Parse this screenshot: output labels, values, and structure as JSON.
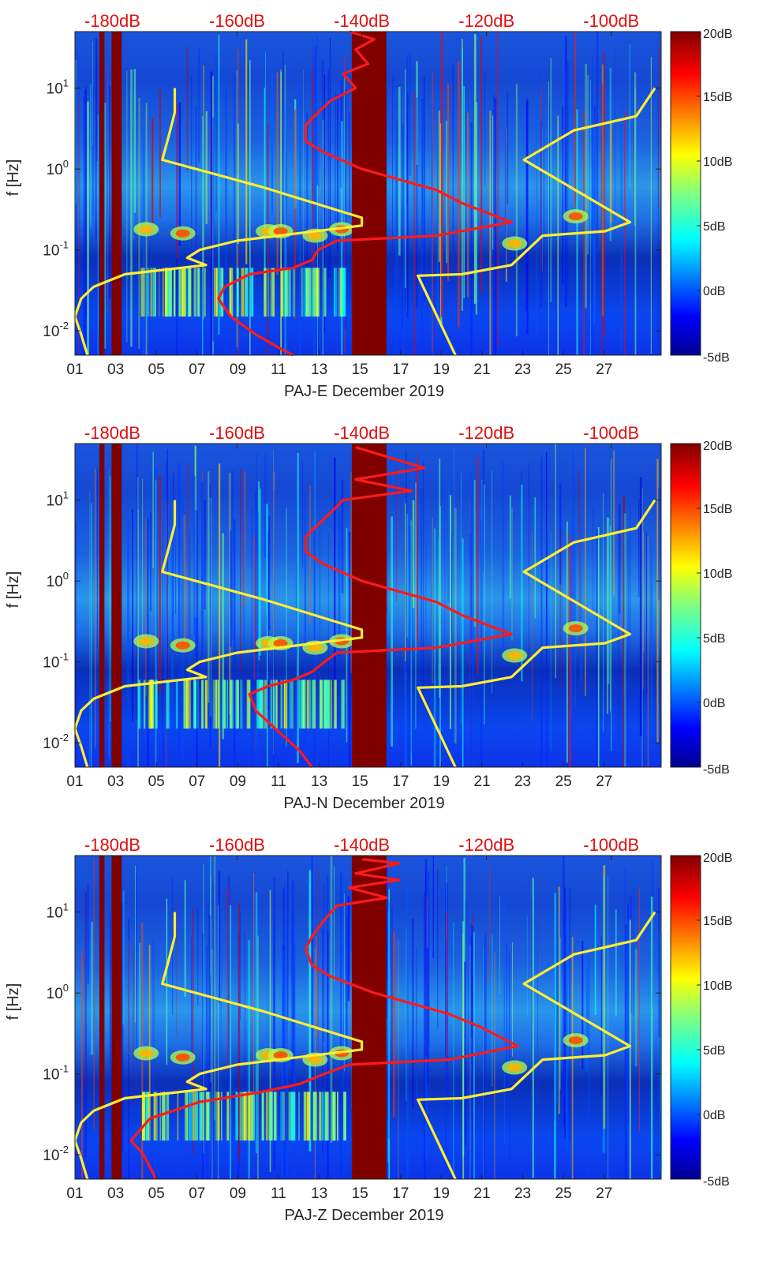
{
  "colors": {
    "noise_model": "#ff1a1a",
    "station_curve": "#ffee33",
    "gap": "#800000",
    "top_label": "#e01010"
  },
  "colorbar": {
    "ticks": [
      "20dB",
      "15dB",
      "10dB",
      "5dB",
      "0dB",
      "-5dB"
    ],
    "range": [
      -5,
      20
    ],
    "colormap": "jet"
  },
  "chart_data": [
    {
      "type": "heatmap",
      "title": "",
      "xlabel": "PAJ-E December 2019",
      "ylabel": "f [Hz]",
      "x_ticks": [
        "01",
        "03",
        "05",
        "07",
        "09",
        "11",
        "13",
        "15",
        "17",
        "19",
        "21",
        "23",
        "25",
        "27"
      ],
      "y_ticks": [
        "10^-2",
        "10^-1",
        "10^0",
        "10^1"
      ],
      "y_scale": "log",
      "ylim": [
        0.005,
        50
      ],
      "xlim": [
        1,
        29.8
      ],
      "top_ticks": [
        "-180dB",
        "-160dB",
        "-140dB",
        "-120dB",
        "-100dB"
      ],
      "top_range_db": [
        -186,
        -92
      ],
      "data_gaps_days": [
        [
          2.2,
          2.45
        ],
        [
          2.8,
          3.3
        ],
        [
          14.6,
          16.3
        ]
      ],
      "series": [
        {
          "color": "red",
          "points": [
            [
              -142,
              50
            ],
            [
              -138,
              40
            ],
            [
              -141,
              30
            ],
            [
              -139,
              20
            ],
            [
              -143,
              15
            ],
            [
              -141,
              10
            ],
            [
              -145,
              7
            ],
            [
              -147,
              5
            ],
            [
              -149,
              3.5
            ],
            [
              -149,
              2.2
            ],
            [
              -146,
              1.6
            ],
            [
              -140,
              1.0
            ],
            [
              -128,
              0.55
            ],
            [
              -124,
              0.38
            ],
            [
              -116,
              0.22
            ],
            [
              -128,
              0.15
            ],
            [
              -144,
              0.13
            ],
            [
              -147,
              0.1
            ],
            [
              -148,
              0.075
            ],
            [
              -151,
              0.06
            ],
            [
              -158,
              0.05
            ],
            [
              -162,
              0.035
            ],
            [
              -163,
              0.025
            ],
            [
              -161,
              0.015
            ],
            [
              -157,
              0.009
            ],
            [
              -153,
              0.006
            ],
            [
              -151,
              0.005
            ]
          ]
        },
        {
          "color": "yellow",
          "points": [
            [
              -170,
              10
            ],
            [
              -170,
              5
            ],
            [
              -171,
              2.5
            ],
            [
              -172,
              1.3
            ],
            [
              -156,
              0.6
            ],
            [
              -140,
              0.25
            ],
            [
              -140,
              0.2
            ],
            [
              -160,
              0.13
            ],
            [
              -166,
              0.1
            ],
            [
              -168,
              0.08
            ],
            [
              -165,
              0.065
            ],
            [
              -178,
              0.05
            ],
            [
              -183,
              0.035
            ],
            [
              -185,
              0.025
            ],
            [
              -186,
              0.015
            ],
            [
              -185,
              0.009
            ],
            [
              -184,
              0.005
            ]
          ]
        },
        {
          "color": "yellow",
          "points": [
            [
              -93,
              10
            ],
            [
              -96,
              4.5
            ],
            [
              -106,
              3
            ],
            [
              -114,
              1.3
            ],
            [
              -97,
              0.22
            ],
            [
              -101,
              0.17
            ],
            [
              -111,
              0.15
            ],
            [
              -116,
              0.065
            ],
            [
              -124,
              0.05
            ],
            [
              -131,
              0.048
            ],
            [
              -125,
              0.005
            ]
          ]
        }
      ]
    },
    {
      "type": "heatmap",
      "title": "",
      "xlabel": "PAJ-N December 2019",
      "ylabel": "f [Hz]",
      "x_ticks": [
        "01",
        "03",
        "05",
        "07",
        "09",
        "11",
        "13",
        "15",
        "17",
        "19",
        "21",
        "23",
        "25",
        "27"
      ],
      "y_ticks": [
        "10^-2",
        "10^-1",
        "10^0",
        "10^1"
      ],
      "y_scale": "log",
      "ylim": [
        0.005,
        50
      ],
      "xlim": [
        1,
        29.8
      ],
      "top_ticks": [
        "-180dB",
        "-160dB",
        "-140dB",
        "-120dB",
        "-100dB"
      ],
      "top_range_db": [
        -186,
        -92
      ],
      "data_gaps_days": [
        [
          2.2,
          2.45
        ],
        [
          2.8,
          3.3
        ],
        [
          14.6,
          16.3
        ]
      ],
      "series": [
        {
          "color": "red",
          "points": [
            [
              -141,
              45
            ],
            [
              -130,
              25
            ],
            [
              -141,
              18
            ],
            [
              -132,
              13
            ],
            [
              -143,
              10
            ],
            [
              -145,
              7
            ],
            [
              -147,
              5
            ],
            [
              -149,
              3.5
            ],
            [
              -149,
              2.3
            ],
            [
              -146,
              1.6
            ],
            [
              -140,
              1.0
            ],
            [
              -128,
              0.55
            ],
            [
              -124,
              0.38
            ],
            [
              -116,
              0.22
            ],
            [
              -128,
              0.15
            ],
            [
              -144,
              0.13
            ],
            [
              -146,
              0.1
            ],
            [
              -148,
              0.075
            ],
            [
              -151,
              0.06
            ],
            [
              -155,
              0.05
            ],
            [
              -158,
              0.04
            ],
            [
              -157,
              0.025
            ],
            [
              -153,
              0.013
            ],
            [
              -150,
              0.008
            ],
            [
              -148,
              0.005
            ]
          ]
        },
        {
          "color": "yellow",
          "points": [
            [
              -170,
              10
            ],
            [
              -170,
              5
            ],
            [
              -171,
              2.5
            ],
            [
              -172,
              1.3
            ],
            [
              -156,
              0.6
            ],
            [
              -140,
              0.25
            ],
            [
              -140,
              0.2
            ],
            [
              -160,
              0.13
            ],
            [
              -166,
              0.1
            ],
            [
              -168,
              0.08
            ],
            [
              -165,
              0.065
            ],
            [
              -178,
              0.05
            ],
            [
              -183,
              0.035
            ],
            [
              -185,
              0.025
            ],
            [
              -186,
              0.015
            ],
            [
              -185,
              0.009
            ],
            [
              -184,
              0.005
            ]
          ]
        },
        {
          "color": "yellow",
          "points": [
            [
              -93,
              10
            ],
            [
              -96,
              4.5
            ],
            [
              -106,
              3
            ],
            [
              -114,
              1.3
            ],
            [
              -97,
              0.22
            ],
            [
              -101,
              0.17
            ],
            [
              -111,
              0.15
            ],
            [
              -116,
              0.065
            ],
            [
              -124,
              0.05
            ],
            [
              -131,
              0.048
            ],
            [
              -125,
              0.005
            ]
          ]
        }
      ]
    },
    {
      "type": "heatmap",
      "title": "",
      "xlabel": "PAJ-Z December 2019",
      "ylabel": "f [Hz]",
      "x_ticks": [
        "01",
        "03",
        "05",
        "07",
        "09",
        "11",
        "13",
        "15",
        "17",
        "19",
        "21",
        "23",
        "25",
        "27"
      ],
      "y_ticks": [
        "10^-2",
        "10^-1",
        "10^0",
        "10^1"
      ],
      "y_scale": "log",
      "ylim": [
        0.005,
        50
      ],
      "xlim": [
        1,
        29.8
      ],
      "top_ticks": [
        "-180dB",
        "-160dB",
        "-140dB",
        "-120dB",
        "-100dB"
      ],
      "top_range_db": [
        -186,
        -92
      ],
      "data_gaps_days": [
        [
          2.2,
          2.45
        ],
        [
          2.8,
          3.3
        ],
        [
          14.6,
          16.3
        ]
      ],
      "series": [
        {
          "color": "red",
          "points": [
            [
              -140,
              45
            ],
            [
              -134,
              40
            ],
            [
              -141,
              30
            ],
            [
              -134,
              25
            ],
            [
              -142,
              20
            ],
            [
              -136,
              15
            ],
            [
              -144,
              12
            ],
            [
              -146,
              8
            ],
            [
              -148,
              5
            ],
            [
              -149,
              3.5
            ],
            [
              -148,
              2.2
            ],
            [
              -145,
              1.6
            ],
            [
              -138,
              1.0
            ],
            [
              -126,
              0.55
            ],
            [
              -121,
              0.38
            ],
            [
              -115,
              0.22
            ],
            [
              -126,
              0.15
            ],
            [
              -142,
              0.13
            ],
            [
              -146,
              0.1
            ],
            [
              -150,
              0.075
            ],
            [
              -156,
              0.06
            ],
            [
              -166,
              0.045
            ],
            [
              -174,
              0.028
            ],
            [
              -177,
              0.015
            ],
            [
              -175,
              0.01
            ],
            [
              -173,
              0.005
            ]
          ]
        },
        {
          "color": "yellow",
          "points": [
            [
              -170,
              10
            ],
            [
              -170,
              5
            ],
            [
              -171,
              2.5
            ],
            [
              -172,
              1.3
            ],
            [
              -156,
              0.6
            ],
            [
              -140,
              0.25
            ],
            [
              -140,
              0.2
            ],
            [
              -160,
              0.13
            ],
            [
              -166,
              0.1
            ],
            [
              -168,
              0.08
            ],
            [
              -165,
              0.065
            ],
            [
              -178,
              0.05
            ],
            [
              -183,
              0.035
            ],
            [
              -185,
              0.025
            ],
            [
              -186,
              0.015
            ],
            [
              -185,
              0.009
            ],
            [
              -184,
              0.005
            ]
          ]
        },
        {
          "color": "yellow",
          "points": [
            [
              -93,
              10
            ],
            [
              -96,
              4.5
            ],
            [
              -106,
              3
            ],
            [
              -114,
              1.3
            ],
            [
              -97,
              0.22
            ],
            [
              -101,
              0.17
            ],
            [
              -111,
              0.15
            ],
            [
              -116,
              0.065
            ],
            [
              -124,
              0.05
            ],
            [
              -131,
              0.048
            ],
            [
              -125,
              0.005
            ]
          ]
        }
      ]
    }
  ]
}
